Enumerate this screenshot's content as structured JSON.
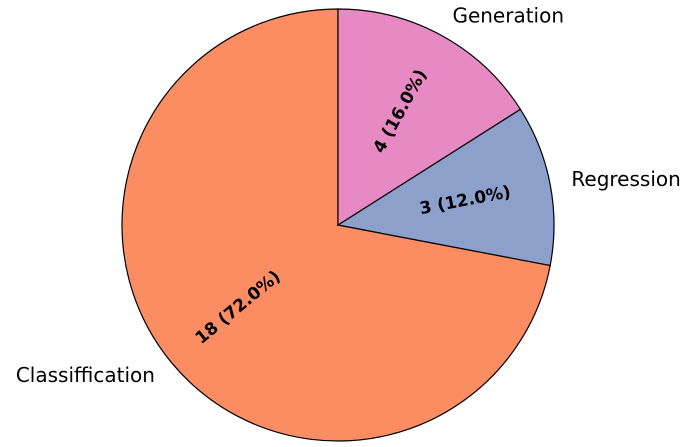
{
  "chart_data": {
    "type": "pie",
    "categories": [
      "Classiffication",
      "Regression",
      "Generation"
    ],
    "values": [
      18,
      3,
      4
    ],
    "value_labels": [
      "18 (72.0%)",
      "3 (12.0%)",
      "4 (16.0%)"
    ],
    "colors": [
      "#fc8d62",
      "#8da0cb",
      "#e78ac3"
    ]
  }
}
